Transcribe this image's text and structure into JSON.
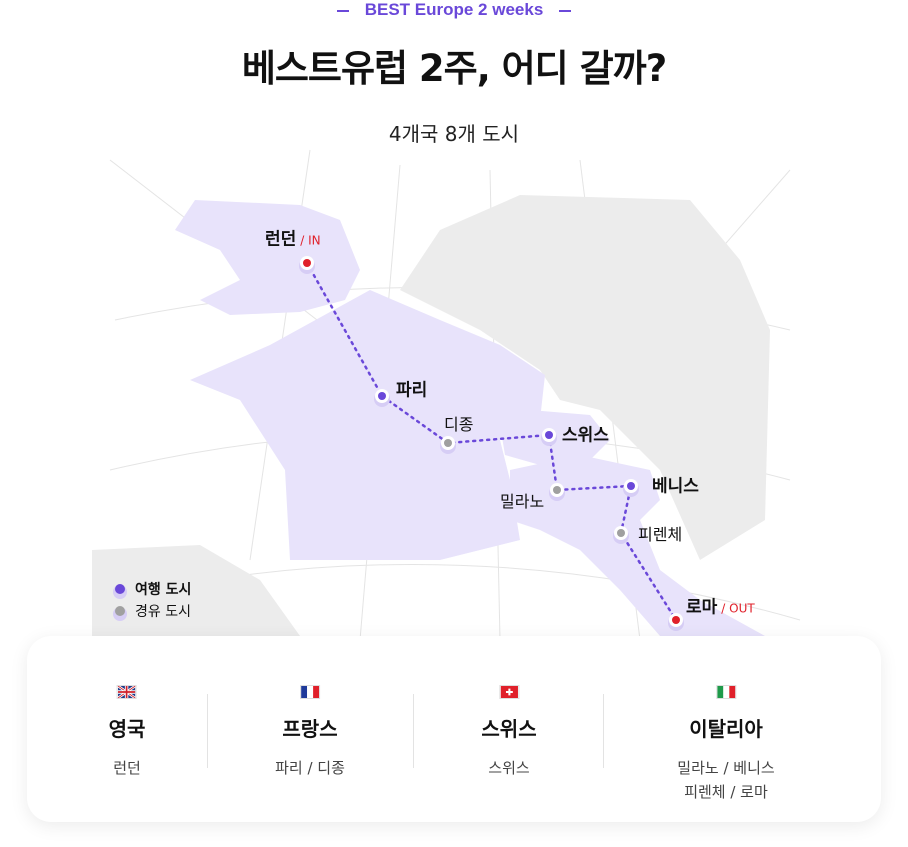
{
  "header": {
    "eyebrow": "BEST Europe 2 weeks",
    "title": "베스트유럽 2주, 어디 갈까?",
    "subtitle": "4개국 8개 도시"
  },
  "colors": {
    "accent": "#6a48d9",
    "route_land": "#e8e3fb",
    "other_land": "#ececec",
    "in_out": "#e0202a",
    "via": "#a0a0a0"
  },
  "cities": [
    {
      "name": "런던",
      "tag": "/ IN",
      "type": "main"
    },
    {
      "name": "파리",
      "type": "main"
    },
    {
      "name": "디종",
      "type": "via"
    },
    {
      "name": "스위스",
      "type": "main"
    },
    {
      "name": "밀라노",
      "type": "via"
    },
    {
      "name": "베니스",
      "type": "main"
    },
    {
      "name": "피렌체",
      "type": "via"
    },
    {
      "name": "로마",
      "tag": "/ OUT",
      "type": "main"
    }
  ],
  "legend": {
    "travel": "여행 도시",
    "via": "경유 도시"
  },
  "countries": [
    {
      "flag": "uk-flag-icon",
      "name": "영국",
      "cities": [
        "런던"
      ]
    },
    {
      "flag": "france-flag-icon",
      "name": "프랑스",
      "cities": [
        "파리 / 디종"
      ]
    },
    {
      "flag": "switzerland-flag-icon",
      "name": "스위스",
      "cities": [
        "스위스"
      ]
    },
    {
      "flag": "italy-flag-icon",
      "name": "이탈리아",
      "cities": [
        "밀라노 / 베니스",
        "피렌체 / 로마"
      ]
    }
  ]
}
